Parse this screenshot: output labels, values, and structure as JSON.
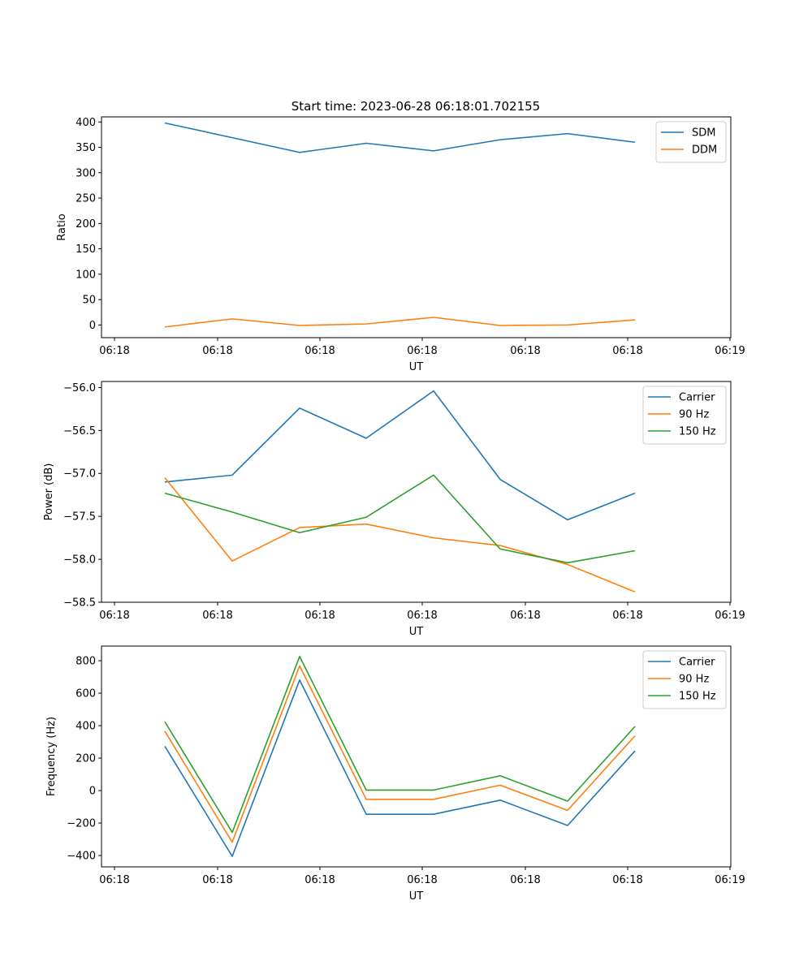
{
  "figure": {
    "title": "Start time: 2023-06-28 06:18:01.702155"
  },
  "chart_data": [
    {
      "type": "line",
      "ylabel": "Ratio",
      "xlabel": "UT",
      "x_tick_labels": [
        "06:18",
        "06:18",
        "06:18",
        "06:18",
        "06:18",
        "06:18",
        "06:19"
      ],
      "ylim": [
        -25,
        410
      ],
      "y_ticks": [
        0,
        50,
        100,
        150,
        200,
        250,
        300,
        350,
        400
      ],
      "y_tick_labels": [
        "0",
        "50",
        "100",
        "150",
        "200",
        "250",
        "300",
        "350",
        "400"
      ],
      "legend_position": "top-right",
      "grid": false,
      "series": [
        {
          "name": "SDM",
          "color": "#1f77b4",
          "values": [
            398,
            369,
            340,
            358,
            343,
            365,
            377,
            360
          ]
        },
        {
          "name": "DDM",
          "color": "#ff7f0e",
          "values": [
            -4,
            12,
            -1,
            2,
            15,
            -1,
            0,
            10
          ]
        }
      ]
    },
    {
      "type": "line",
      "ylabel": "Power (dB)",
      "xlabel": "UT",
      "x_tick_labels": [
        "06:18",
        "06:18",
        "06:18",
        "06:18",
        "06:18",
        "06:18",
        "06:19"
      ],
      "ylim": [
        -58.5,
        -55.93
      ],
      "y_ticks": [
        -58.5,
        -58.0,
        -57.5,
        -57.0,
        -56.5,
        -56.0
      ],
      "y_tick_labels": [
        "−58.5",
        "−58.0",
        "−57.5",
        "−57.0",
        "−56.5",
        "−56.0"
      ],
      "legend_position": "top-right",
      "grid": false,
      "series": [
        {
          "name": "Carrier",
          "color": "#1f77b4",
          "values": [
            -57.1,
            -57.02,
            -56.24,
            -56.59,
            -56.04,
            -57.07,
            -57.54,
            -57.23
          ]
        },
        {
          "name": "90 Hz",
          "color": "#ff7f0e",
          "values": [
            -57.05,
            -58.02,
            -57.63,
            -57.59,
            -57.75,
            -57.84,
            -58.06,
            -58.38
          ]
        },
        {
          "name": "150 Hz",
          "color": "#2ca02c",
          "values": [
            -57.23,
            -57.45,
            -57.69,
            -57.51,
            -57.02,
            -57.88,
            -58.04,
            -57.9
          ]
        }
      ]
    },
    {
      "type": "line",
      "ylabel": "Frequency (Hz)",
      "xlabel": "UT",
      "x_tick_labels": [
        "06:18",
        "06:18",
        "06:18",
        "06:18",
        "06:18",
        "06:18",
        "06:19"
      ],
      "ylim": [
        -470,
        890
      ],
      "y_ticks": [
        -400,
        -200,
        0,
        200,
        400,
        600,
        800
      ],
      "y_tick_labels": [
        "−400",
        "−200",
        "0",
        "200",
        "400",
        "600",
        "800"
      ],
      "legend_position": "top-right",
      "grid": false,
      "series": [
        {
          "name": "Carrier",
          "color": "#1f77b4",
          "values": [
            273,
            -405,
            681,
            -146,
            -146,
            -59,
            -215,
            244
          ]
        },
        {
          "name": "90 Hz",
          "color": "#ff7f0e",
          "values": [
            366,
            -318,
            768,
            -54,
            -54,
            33,
            -122,
            337
          ]
        },
        {
          "name": "150 Hz",
          "color": "#2ca02c",
          "values": [
            424,
            -258,
            826,
            3,
            3,
            91,
            -65,
            395
          ]
        }
      ]
    }
  ]
}
